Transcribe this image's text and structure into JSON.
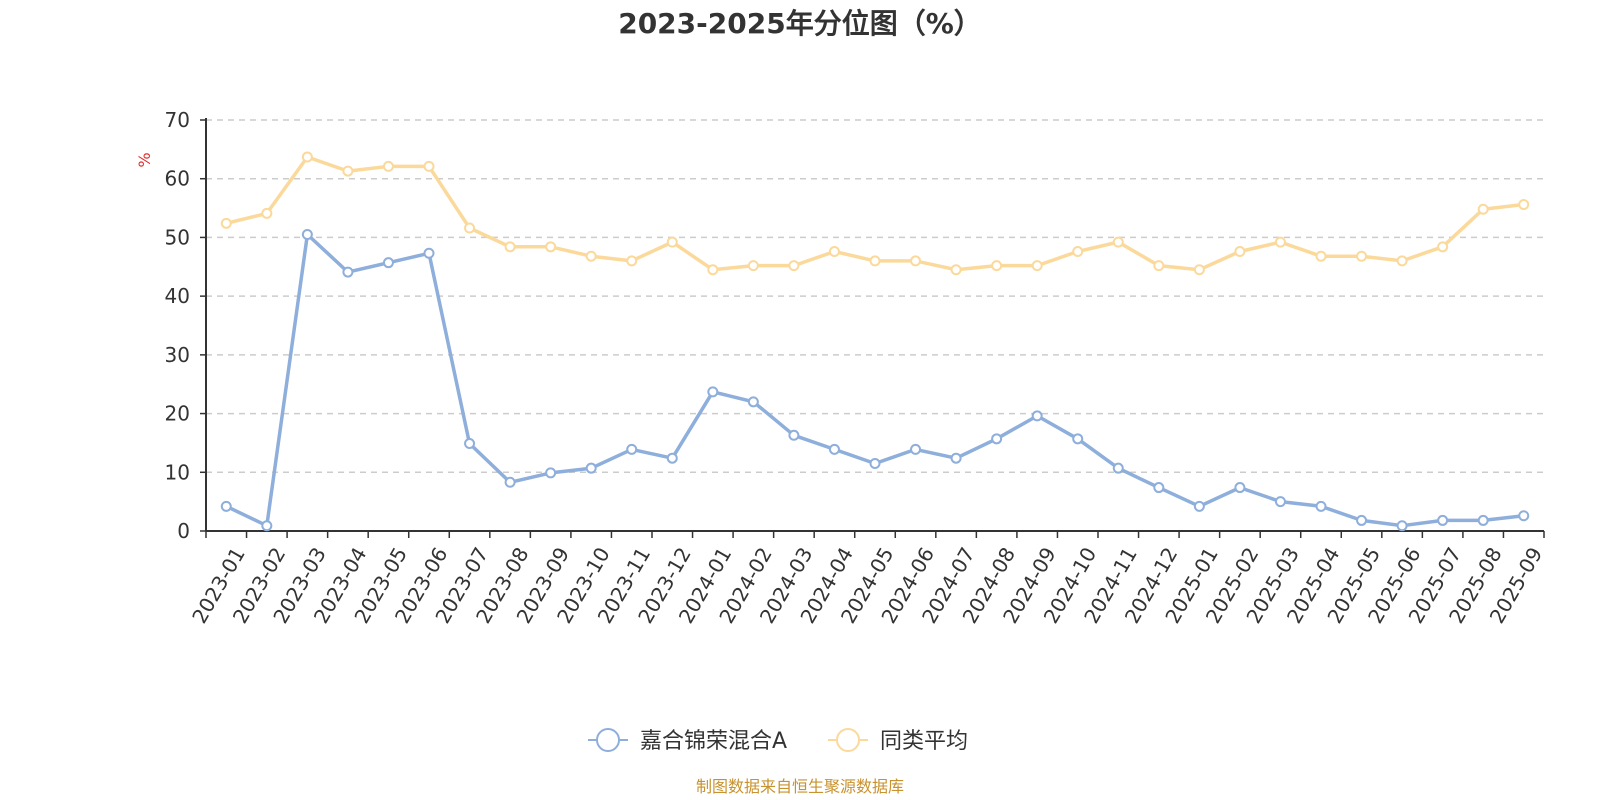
{
  "chart_data": {
    "type": "line",
    "title": "2023-2025年分位图（%）",
    "ylabel": "%",
    "xlabel": "",
    "ylim": [
      0,
      70
    ],
    "yticks": [
      0,
      10,
      20,
      30,
      40,
      50,
      60,
      70
    ],
    "grid": true,
    "legend_position": "bottom-center",
    "categories": [
      "2023-01",
      "2023-02",
      "2023-03",
      "2023-04",
      "2023-05",
      "2023-06",
      "2023-07",
      "2023-08",
      "2023-09",
      "2023-10",
      "2023-11",
      "2023-12",
      "2024-01",
      "2024-02",
      "2024-03",
      "2024-04",
      "2024-05",
      "2024-06",
      "2024-07",
      "2024-08",
      "2024-09",
      "2024-10",
      "2024-11",
      "2024-12",
      "2025-01",
      "2025-02",
      "2025-03",
      "2025-04",
      "2025-05",
      "2025-06",
      "2025-07",
      "2025-08",
      "2025-09"
    ],
    "series": [
      {
        "name": "嘉合锦荣混合A",
        "color": "#8eaedb",
        "values": [
          4.2,
          0.9,
          50.5,
          44.1,
          45.7,
          47.3,
          14.9,
          8.3,
          9.9,
          10.7,
          13.9,
          12.4,
          23.7,
          22.0,
          16.3,
          13.9,
          11.5,
          13.9,
          12.4,
          15.7,
          19.6,
          15.7,
          10.7,
          7.4,
          4.2,
          7.4,
          5.0,
          4.2,
          1.8,
          0.9,
          1.8,
          1.8,
          2.6
        ]
      },
      {
        "name": "同类平均",
        "color": "#fbd99b",
        "values": [
          52.4,
          54.1,
          63.7,
          61.3,
          62.1,
          62.1,
          51.6,
          48.4,
          48.4,
          46.8,
          46.0,
          49.2,
          44.5,
          45.2,
          45.2,
          47.6,
          46.0,
          46.0,
          44.5,
          45.2,
          45.2,
          47.6,
          49.2,
          45.2,
          44.5,
          47.6,
          49.2,
          46.8,
          46.8,
          46.0,
          48.4,
          54.8,
          55.6
        ]
      }
    ],
    "source_note": "制图数据来自恒生聚源数据库",
    "source_color": "#c8922e",
    "unit_color": "#e03030"
  }
}
